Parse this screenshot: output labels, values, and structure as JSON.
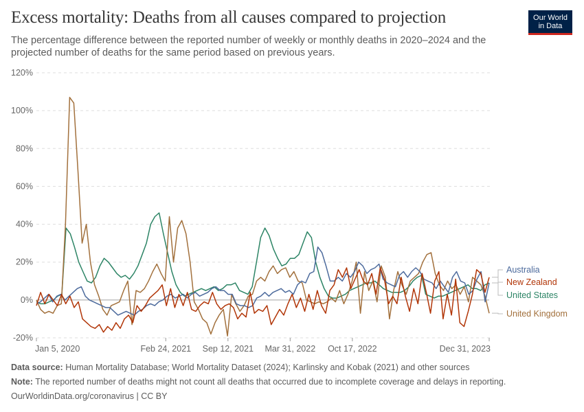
{
  "header": {
    "title": "Excess mortality: Deaths from all causes compared to projection",
    "subtitle": "The percentage difference between the reported number of weekly or monthly deaths in 2020–2024 and the projected number of deaths for the same period based on previous years.",
    "logo_line1": "Our World",
    "logo_line2": "in Data"
  },
  "footer": {
    "source_label": "Data source:",
    "source_text": "Human Mortality Database; World Mortality Dataset (2024); Karlinsky and Kobak (2021) and other sources",
    "note_label": "Note:",
    "note_text": "The reported number of deaths might not count all deaths that occurred due to incomplete coverage and delays in reporting.",
    "url": "OurWorldinData.org/coronavirus | CC BY"
  },
  "colors": {
    "Australia": "#4c6a9c",
    "New Zealand": "#b13507",
    "United States": "#2c8465",
    "United Kingdom": "#a2703c"
  },
  "chart_data": {
    "type": "line",
    "title": "Excess mortality: Deaths from all causes compared to projection",
    "xlabel": "",
    "ylabel": "",
    "ylim": [
      -20,
      120
    ],
    "y_ticks": [
      -20,
      0,
      20,
      40,
      60,
      80,
      100,
      120
    ],
    "y_tick_labels": [
      "-20%",
      "0%",
      "20%",
      "40%",
      "60%",
      "80%",
      "100%",
      "120%"
    ],
    "x_range": [
      "2020-01-05",
      "2023-12-31"
    ],
    "x_ticks": [
      {
        "date": "2020-01-05",
        "label": "Jan 5, 2020"
      },
      {
        "date": "2021-02-24",
        "label": "Feb 24, 2021"
      },
      {
        "date": "2021-09-12",
        "label": "Sep 12, 2021"
      },
      {
        "date": "2022-03-31",
        "label": "Mar 31, 2022"
      },
      {
        "date": "2022-10-17",
        "label": "Oct 17, 2022"
      },
      {
        "date": "2023-12-31",
        "label": "Dec 31, 2023"
      }
    ],
    "grid": true,
    "legend": "right (labels at line ends)",
    "x_note": "values are approximate, sampled at evenly spaced points (roughly every 2 weeks) from 2020-01-05 to 2023-12-31",
    "series": [
      {
        "name": "Australia",
        "values": [
          -2,
          -1,
          1,
          3,
          -1,
          2,
          3,
          0,
          2,
          4,
          6,
          7,
          2,
          0,
          -1,
          -2,
          -3,
          -4,
          -4,
          -6,
          -8,
          -7,
          -6,
          -7,
          -8,
          -6,
          -5,
          -3,
          -2,
          -3,
          -1,
          0,
          2,
          3,
          1,
          2,
          3,
          1,
          3,
          4,
          2,
          3,
          4,
          6,
          7,
          5,
          5,
          3,
          3,
          -2,
          -3,
          -3,
          -4,
          -3,
          1,
          2,
          4,
          2,
          4,
          5,
          6,
          4,
          5,
          3,
          8,
          10,
          9,
          14,
          15,
          28,
          25,
          18,
          10,
          10,
          12,
          10,
          14,
          12,
          15,
          20,
          18,
          14,
          16,
          17,
          19,
          11,
          9,
          8,
          7,
          13,
          15,
          12,
          15,
          17,
          15,
          11,
          10,
          9,
          6,
          10,
          7,
          4,
          12,
          15,
          10,
          9,
          3,
          5,
          11,
          15,
          -1,
          9
        ],
        "note": "approximate"
      },
      {
        "name": "New Zealand",
        "values": [
          -3,
          4,
          -2,
          3,
          0,
          -3,
          3,
          -2,
          2,
          -4,
          -1,
          -10,
          -12,
          -14,
          -15,
          -13,
          -17,
          -14,
          -16,
          -12,
          -15,
          -10,
          -8,
          -12,
          -3,
          -6,
          -3,
          1,
          3,
          5,
          8,
          -3,
          6,
          -4,
          3,
          -3,
          4,
          -5,
          -6,
          -3,
          -1,
          -2,
          4,
          -2,
          -5,
          -3,
          -2,
          -4,
          -10,
          -7,
          -9,
          4,
          -7,
          -5,
          -6,
          -3,
          -13,
          -9,
          -5,
          -8,
          -2,
          3,
          -4,
          1,
          -6,
          3,
          -5,
          5,
          -3,
          -7,
          5,
          8,
          16,
          12,
          17,
          6,
          11,
          16,
          10,
          8,
          14,
          3,
          17,
          11,
          -2,
          2,
          -2,
          12,
          2,
          -6,
          6,
          -2,
          14,
          4,
          -7,
          10,
          15,
          -10,
          3,
          -8,
          11,
          -12,
          -14,
          -6,
          3,
          16,
          14,
          4,
          12
        ],
        "note": "approximate"
      },
      {
        "name": "United States",
        "values": [
          -1,
          -2,
          -2,
          -1,
          0,
          2,
          3,
          38,
          35,
          28,
          20,
          15,
          10,
          9,
          12,
          18,
          22,
          20,
          17,
          14,
          12,
          13,
          11,
          14,
          18,
          24,
          30,
          40,
          44,
          46,
          35,
          25,
          15,
          8,
          4,
          2,
          3,
          4,
          5,
          6,
          5,
          6,
          7,
          5,
          6,
          8,
          8,
          9,
          5,
          4,
          3,
          7,
          20,
          33,
          38,
          34,
          27,
          22,
          18,
          19,
          22,
          22,
          24,
          30,
          36,
          33,
          20,
          12,
          6,
          2,
          1,
          1,
          2,
          3,
          5,
          6,
          7,
          8,
          9,
          9,
          10,
          8,
          6,
          5,
          4,
          4,
          4,
          5,
          7,
          10,
          12,
          13,
          3,
          2,
          1,
          2,
          2,
          3,
          4,
          5,
          6,
          7,
          8,
          6,
          6,
          5,
          8,
          9
        ],
        "note": "approximate"
      },
      {
        "name": "United Kingdom",
        "values": [
          0,
          -5,
          -7,
          -6,
          -7,
          -3,
          -2,
          40,
          107,
          104,
          68,
          30,
          40,
          20,
          8,
          2,
          -5,
          -8,
          -3,
          -2,
          -1,
          5,
          10,
          -13,
          5,
          4,
          6,
          10,
          15,
          19,
          14,
          10,
          44,
          20,
          38,
          42,
          35,
          20,
          -1,
          -5,
          -10,
          -12,
          -18,
          -12,
          -8,
          -5,
          -19,
          3,
          -2,
          -6,
          -3,
          2,
          3,
          10,
          12,
          10,
          15,
          18,
          14,
          16,
          17,
          12,
          15,
          10,
          9,
          0,
          -1,
          -2,
          -1,
          -2,
          -1,
          1,
          -1,
          5,
          -2,
          3,
          10,
          20,
          -7,
          15,
          5,
          10,
          -1,
          18,
          12,
          -10,
          5,
          15,
          8,
          3,
          10,
          12,
          14,
          20,
          24,
          25,
          14,
          8,
          5,
          10,
          6,
          8,
          3,
          7,
          -1,
          12,
          10,
          8,
          2,
          -7
        ],
        "note": "approximate"
      }
    ]
  }
}
